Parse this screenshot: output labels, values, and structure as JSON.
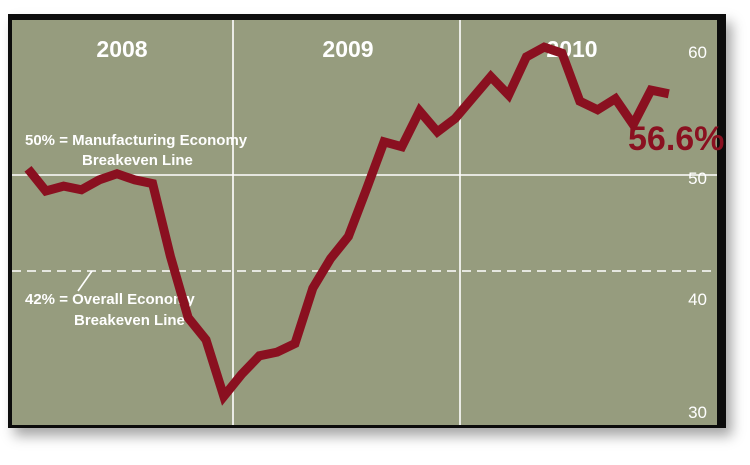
{
  "chart_data": {
    "type": "line",
    "title": "",
    "xlabel": "",
    "ylabel": "",
    "year_labels": [
      "2008",
      "2009",
      "2010"
    ],
    "y_ticks": [
      30,
      40,
      50,
      60
    ],
    "ylim": [
      30,
      61
    ],
    "grid": true,
    "series": [
      {
        "name": "",
        "values": [
          50.5,
          48.7,
          49.1,
          48.8,
          49.6,
          50.1,
          49.6,
          49.3,
          43.4,
          38.4,
          36.6,
          32.0,
          33.8,
          35.3,
          35.6,
          36.3,
          40.8,
          43.2,
          45.0,
          48.8,
          52.7,
          52.3,
          55.2,
          53.5,
          54.6,
          56.3,
          58.0,
          56.5,
          59.6,
          60.4,
          59.9,
          56.0,
          55.3,
          56.2,
          54.1,
          56.9,
          56.6
        ]
      }
    ],
    "reference_lines": [
      {
        "value": 50,
        "style": "solid",
        "label_1": "50% = Manufacturing Economy",
        "label_2": "Breakeven Line"
      },
      {
        "value": 42,
        "style": "dashed",
        "label_1": "42% = Overall Economy",
        "label_2": "Breakeven Line"
      }
    ],
    "callout": "56.6%",
    "colors": {
      "background": "#969c7e",
      "line": "#8a1020",
      "frame": "#0c0c0c",
      "grid": "#ffffff"
    }
  }
}
